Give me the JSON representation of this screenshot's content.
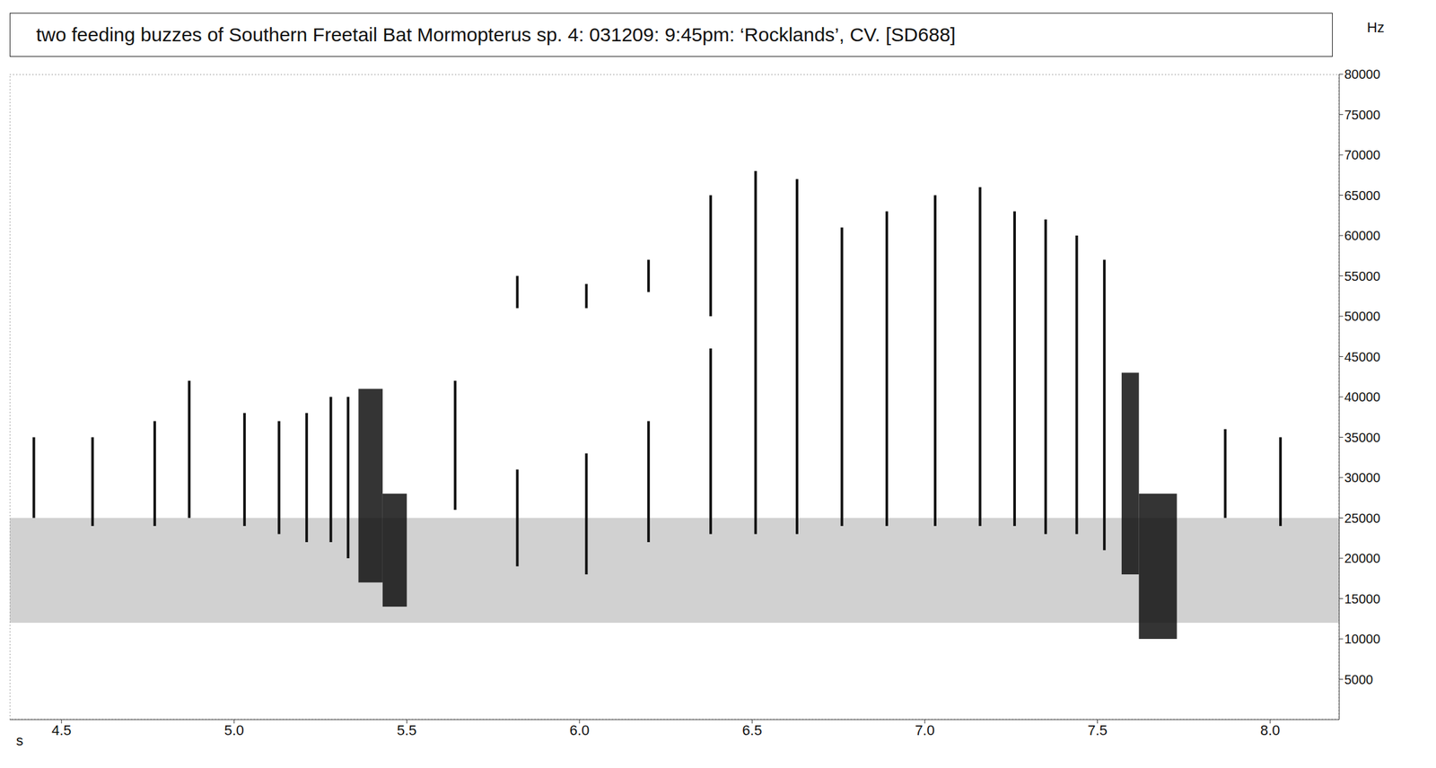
{
  "chart_data": {
    "type": "spectrogram",
    "title": "two feeding buzzes of Southern Freetail Bat Mormopterus sp. 4: 031209: 9:45pm: ‘Rocklands’, CV. [SD688]",
    "x_label": "s",
    "y_label": "Hz",
    "xlim": [
      4.35,
      8.2
    ],
    "xticks": [
      4.5,
      {
        "value": 5,
        "label": "5.0"
      },
      5.5,
      {
        "value": 6,
        "label": "6.0"
      },
      6.5,
      {
        "value": 7,
        "label": "7.0"
      },
      7.5,
      {
        "value": 8,
        "label": "8.0"
      }
    ],
    "ylim": [
      0,
      80000
    ],
    "yticks": [
      5000,
      10000,
      15000,
      20000,
      25000,
      30000,
      35000,
      40000,
      45000,
      50000,
      55000,
      60000,
      65000,
      70000,
      75000,
      80000
    ],
    "color": "#111111",
    "noise_band": [
      12000,
      25000
    ],
    "calls": [
      {
        "t": 4.42,
        "segments": [
          [
            25000,
            35000
          ]
        ]
      },
      {
        "t": 4.59,
        "segments": [
          [
            24000,
            35000
          ]
        ]
      },
      {
        "t": 4.77,
        "segments": [
          [
            24000,
            37000
          ]
        ]
      },
      {
        "t": 4.87,
        "segments": [
          [
            25000,
            42000
          ]
        ]
      },
      {
        "t": 5.03,
        "segments": [
          [
            24000,
            38000
          ]
        ]
      },
      {
        "t": 5.13,
        "segments": [
          [
            23000,
            37000
          ]
        ]
      },
      {
        "t": 5.21,
        "segments": [
          [
            22000,
            38000
          ]
        ]
      },
      {
        "t": 5.28,
        "segments": [
          [
            22000,
            40000
          ]
        ]
      },
      {
        "t": 5.33,
        "segments": [
          [
            20000,
            40000
          ]
        ]
      },
      {
        "t": 5.64,
        "segments": [
          [
            26000,
            42000
          ]
        ]
      },
      {
        "t": 5.82,
        "segments": [
          [
            19000,
            31000
          ],
          [
            51000,
            55000
          ]
        ]
      },
      {
        "t": 6.02,
        "segments": [
          [
            18000,
            33000
          ],
          [
            51000,
            54000
          ]
        ]
      },
      {
        "t": 6.2,
        "segments": [
          [
            22000,
            37000
          ],
          [
            53000,
            57000
          ]
        ]
      },
      {
        "t": 6.38,
        "segments": [
          [
            23000,
            46000
          ],
          [
            50000,
            65000
          ]
        ]
      },
      {
        "t": 6.51,
        "segments": [
          [
            23000,
            68000
          ]
        ]
      },
      {
        "t": 6.63,
        "segments": [
          [
            23000,
            67000
          ]
        ]
      },
      {
        "t": 6.76,
        "segments": [
          [
            24000,
            61000
          ]
        ]
      },
      {
        "t": 6.89,
        "segments": [
          [
            24000,
            63000
          ]
        ]
      },
      {
        "t": 7.03,
        "segments": [
          [
            24000,
            65000
          ]
        ]
      },
      {
        "t": 7.16,
        "segments": [
          [
            24000,
            66000
          ]
        ]
      },
      {
        "t": 7.26,
        "segments": [
          [
            24000,
            63000
          ]
        ]
      },
      {
        "t": 7.35,
        "segments": [
          [
            23000,
            62000
          ]
        ]
      },
      {
        "t": 7.44,
        "segments": [
          [
            23000,
            60000
          ]
        ]
      },
      {
        "t": 7.52,
        "segments": [
          [
            21000,
            57000
          ]
        ]
      },
      {
        "t": 7.87,
        "segments": [
          [
            25000,
            36000
          ]
        ]
      },
      {
        "t": 8.03,
        "segments": [
          [
            24000,
            35000
          ]
        ]
      }
    ],
    "buzzes": [
      {
        "start": 5.36,
        "end": 5.43,
        "fmin": 17000,
        "fmax": 41000
      },
      {
        "start": 5.43,
        "end": 5.5,
        "fmin": 14000,
        "fmax": 28000
      },
      {
        "start": 7.57,
        "end": 7.62,
        "fmin": 18000,
        "fmax": 43000
      },
      {
        "start": 7.62,
        "end": 7.73,
        "fmin": 10000,
        "fmax": 28000
      }
    ]
  }
}
